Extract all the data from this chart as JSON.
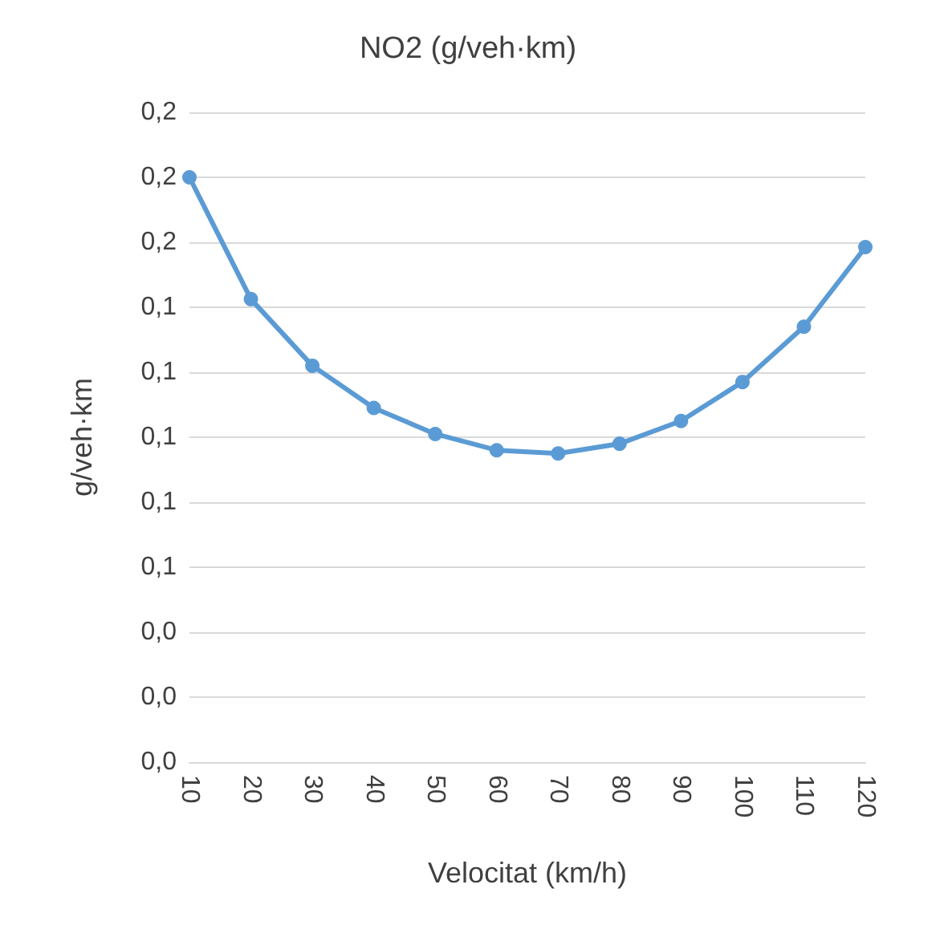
{
  "chart_data": {
    "type": "line",
    "title": "NO2 (g/veh·km)",
    "xlabel": "Velocitat (km/h)",
    "ylabel": "g/veh·km",
    "categories": [
      "10",
      "20",
      "30",
      "40",
      "50",
      "60",
      "70",
      "80",
      "90",
      "100",
      "110",
      "120"
    ],
    "series": [
      {
        "color": "#5b9bd5",
        "values": [
          0.18,
          0.1425,
          0.122,
          0.109,
          0.101,
          0.096,
          0.095,
          0.098,
          0.105,
          0.117,
          0.134,
          0.1585
        ]
      }
    ],
    "ylim": [
      0,
      0.2
    ],
    "yticks": [
      {
        "value": 0,
        "label": "0,0"
      },
      {
        "value": 0.02,
        "label": "0,0"
      },
      {
        "value": 0.04,
        "label": "0,0"
      },
      {
        "value": 0.06,
        "label": "0,1"
      },
      {
        "value": 0.08,
        "label": "0,1"
      },
      {
        "value": 0.1,
        "label": "0,1"
      },
      {
        "value": 0.12,
        "label": "0,1"
      },
      {
        "value": 0.14,
        "label": "0,1"
      },
      {
        "value": 0.16,
        "label": "0,2"
      },
      {
        "value": 0.18,
        "label": "0,2"
      },
      {
        "value": 0.2,
        "label": "0,2"
      }
    ],
    "grid": "y",
    "marker": "circle",
    "line_style": "solid"
  }
}
